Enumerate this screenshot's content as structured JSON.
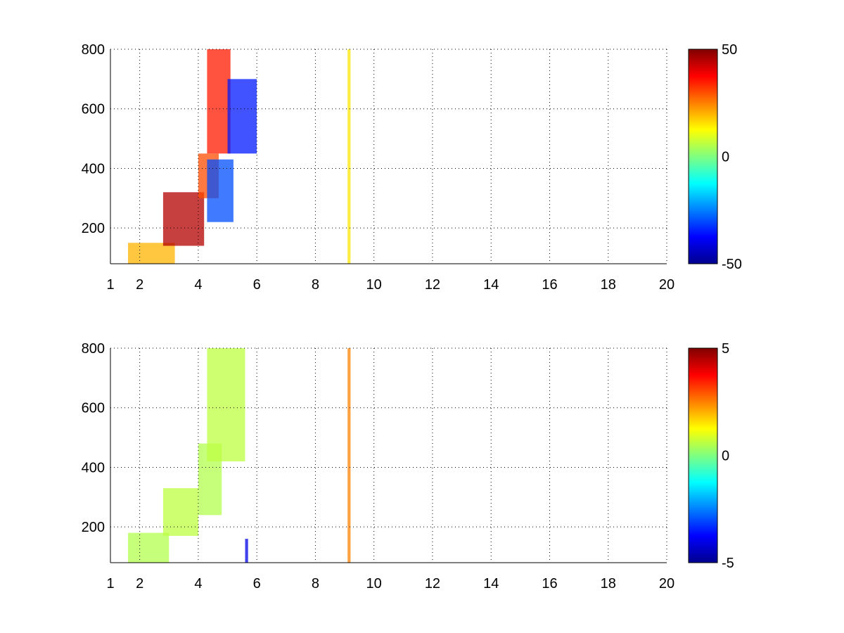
{
  "chart_data": [
    {
      "type": "heatmap",
      "title": "",
      "xlabel": "",
      "ylabel": "",
      "xlim": [
        1,
        20
      ],
      "ylim": [
        80,
        800
      ],
      "x_ticks": [
        1,
        2,
        4,
        6,
        8,
        10,
        12,
        14,
        16,
        18,
        20
      ],
      "y_ticks": [
        200,
        400,
        600,
        800
      ],
      "grid": true,
      "colormap": "jet",
      "colorbar": {
        "min": -50,
        "max": 50,
        "ticks": [
          50,
          0,
          -50
        ]
      },
      "features": [
        {
          "x": [
            1.6,
            3.2
          ],
          "y": [
            80,
            150
          ],
          "value": 20
        },
        {
          "x": [
            2.8,
            4.2
          ],
          "y": [
            140,
            320
          ],
          "value": 45
        },
        {
          "x": [
            4.0,
            4.7
          ],
          "y": [
            300,
            450
          ],
          "value": 30
        },
        {
          "x": [
            4.3,
            5.1
          ],
          "y": [
            450,
            800
          ],
          "value": 35
        },
        {
          "x": [
            4.3,
            5.2
          ],
          "y": [
            220,
            430
          ],
          "value": -30
        },
        {
          "x": [
            5.0,
            6.0
          ],
          "y": [
            450,
            700
          ],
          "value": -35
        },
        {
          "x": [
            9.1,
            9.2
          ],
          "y": [
            80,
            800
          ],
          "value": 15
        }
      ]
    },
    {
      "type": "heatmap",
      "title": "",
      "xlabel": "",
      "ylabel": "",
      "xlim": [
        1,
        20
      ],
      "ylim": [
        80,
        800
      ],
      "x_ticks": [
        1,
        2,
        4,
        6,
        8,
        10,
        12,
        14,
        16,
        18,
        20
      ],
      "y_ticks": [
        200,
        400,
        600,
        800
      ],
      "grid": true,
      "colormap": "jet",
      "colorbar": {
        "min": -5,
        "max": 5,
        "ticks": [
          5,
          0,
          -5
        ]
      },
      "features": [
        {
          "x": [
            1.6,
            3.0
          ],
          "y": [
            80,
            180
          ],
          "value": 0.5
        },
        {
          "x": [
            2.8,
            4.0
          ],
          "y": [
            170,
            330
          ],
          "value": 0.6
        },
        {
          "x": [
            4.0,
            4.8
          ],
          "y": [
            240,
            480
          ],
          "value": 0.5
        },
        {
          "x": [
            4.3,
            5.6
          ],
          "y": [
            420,
            800
          ],
          "value": 0.6
        },
        {
          "x": [
            9.1,
            9.2
          ],
          "y": [
            80,
            800
          ],
          "value": 2.5
        },
        {
          "x": [
            5.6,
            5.7
          ],
          "y": [
            80,
            160
          ],
          "value": -4
        }
      ]
    }
  ]
}
